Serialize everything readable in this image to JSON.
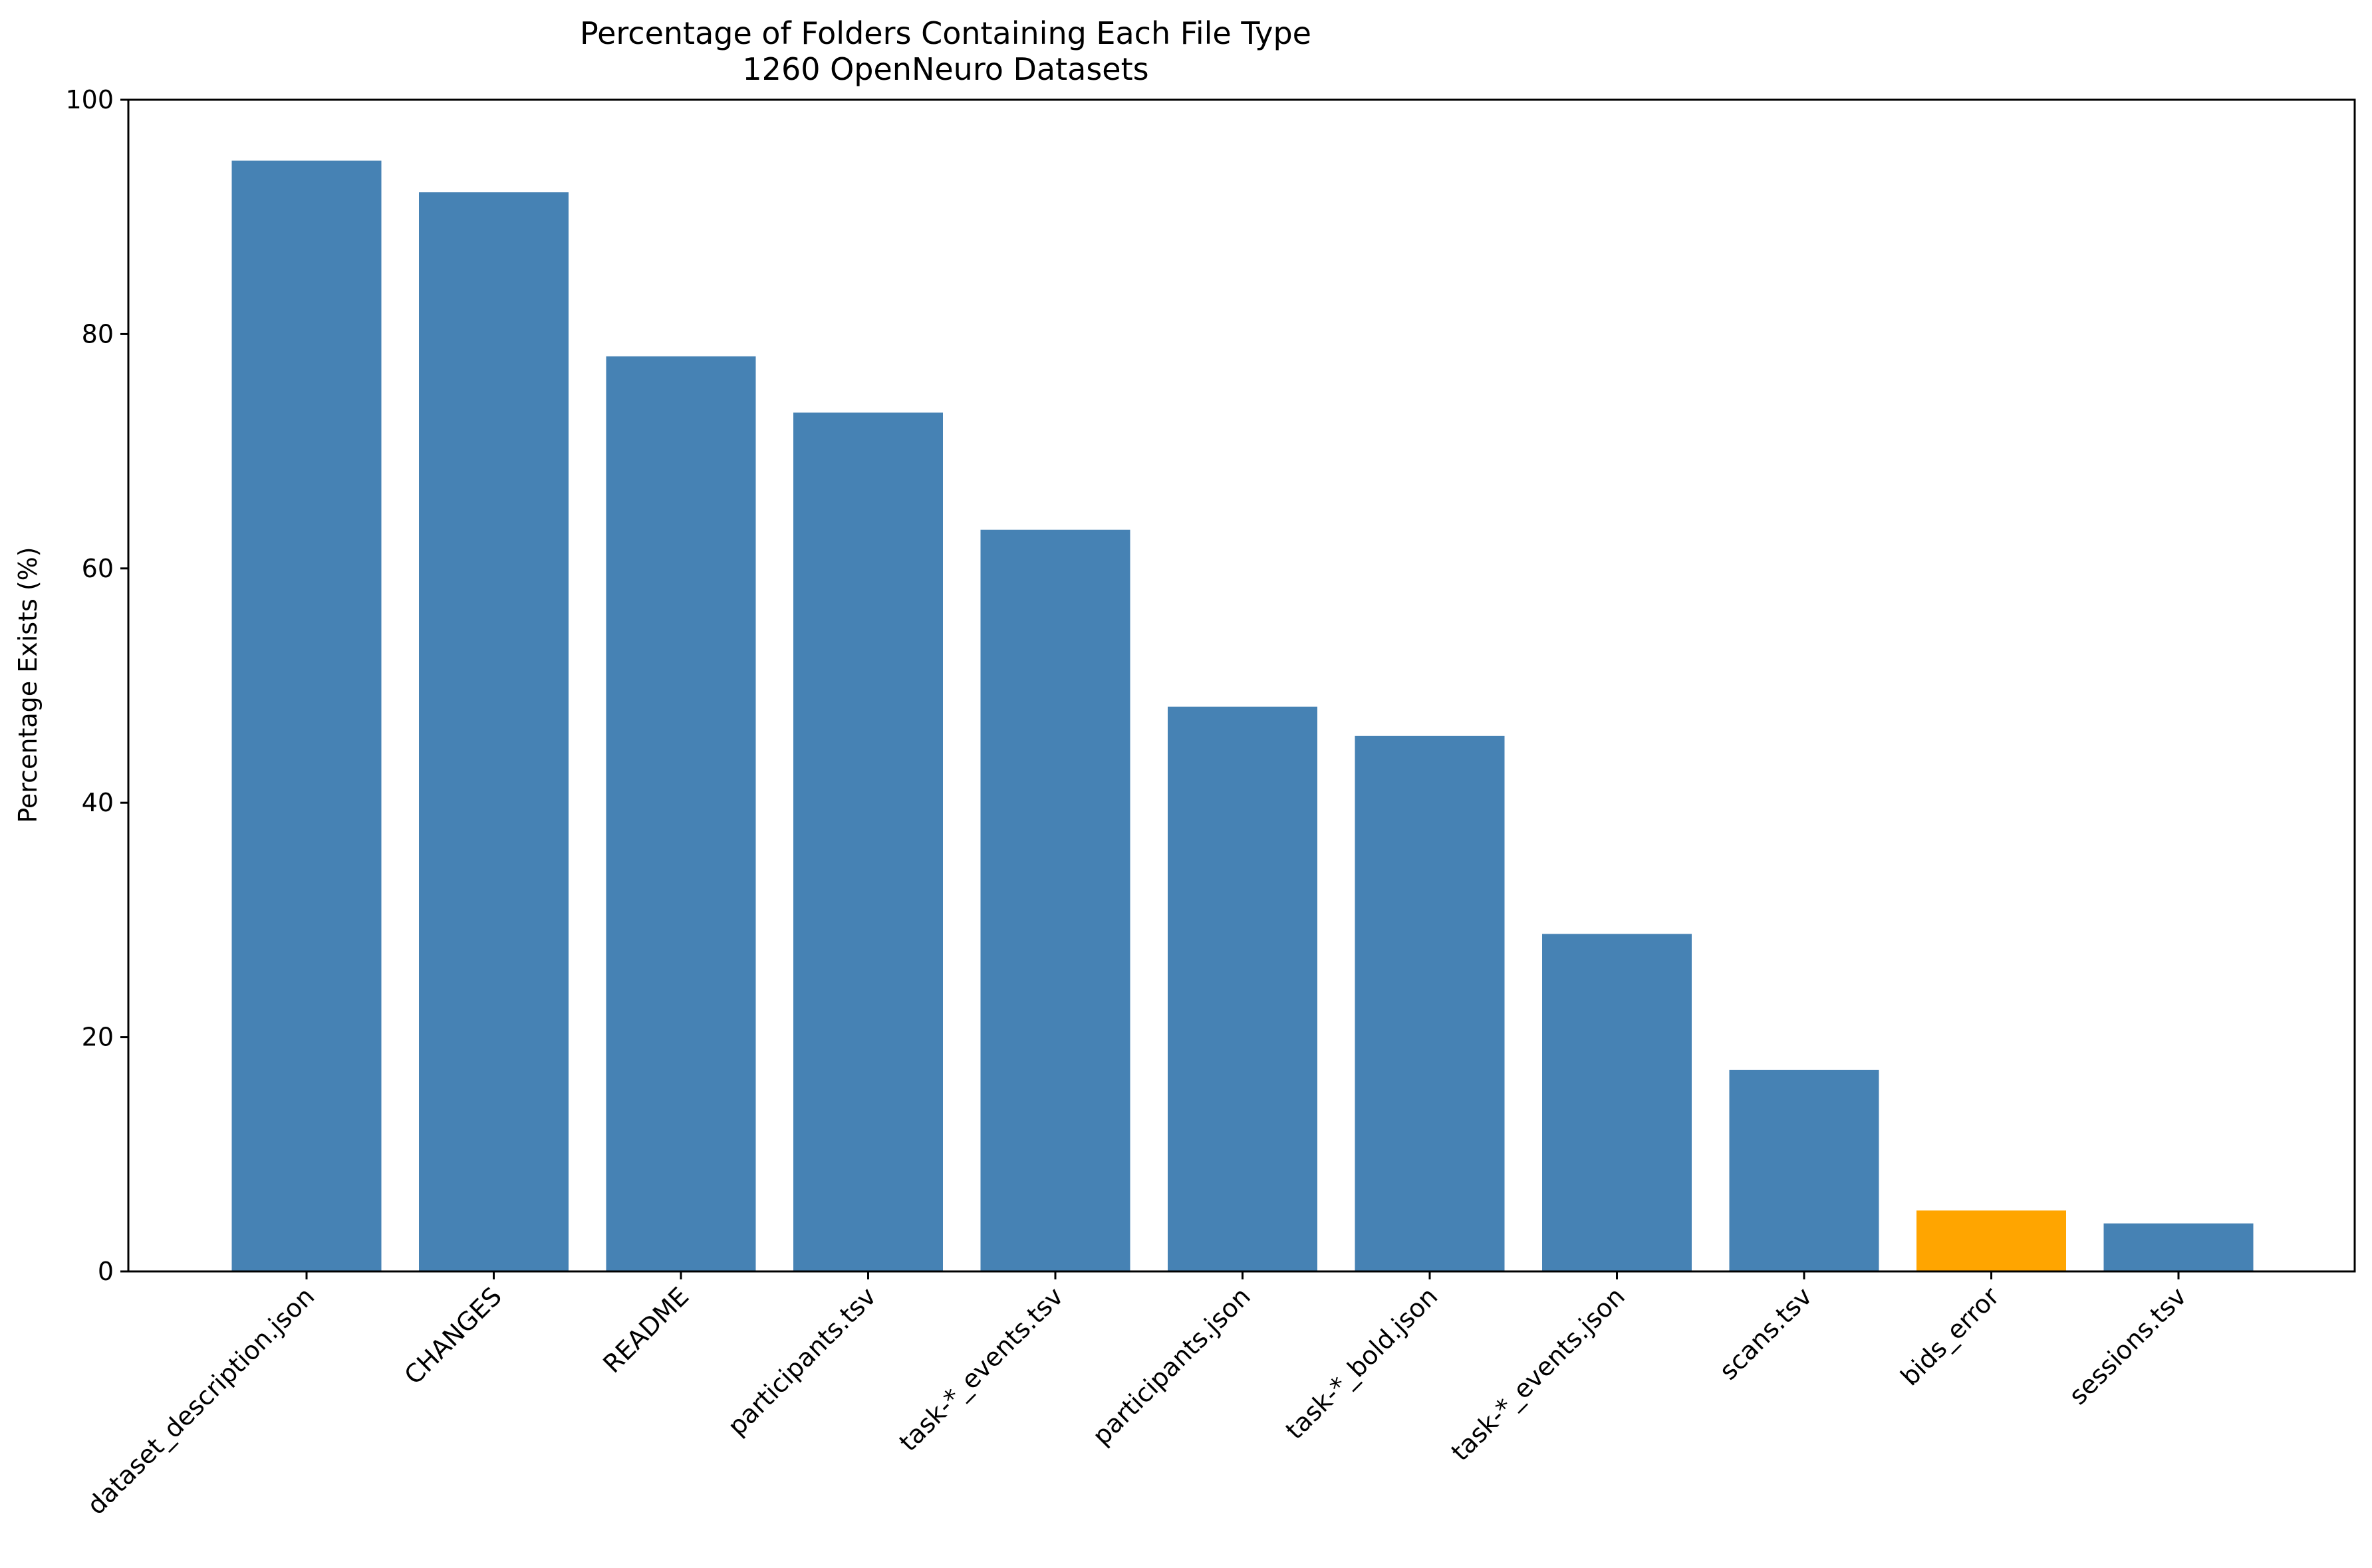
{
  "chart_data": {
    "type": "bar",
    "title": "Percentage of Folders Containing Each File Type",
    "subtitle": "1260 OpenNeuro Datasets",
    "xlabel": "",
    "ylabel": "Percentage Exists (%)",
    "ylim": [
      0,
      100
    ],
    "yticks": [
      0,
      20,
      40,
      60,
      80,
      100
    ],
    "grid": false,
    "legend": "none",
    "categories": [
      "dataset_description.json",
      "CHANGES",
      "README",
      "participants.tsv",
      "task-*_events.tsv",
      "participants.json",
      "task-*_bold.json",
      "task-*_events.json",
      "scans.tsv",
      "bids_error",
      "sessions.tsv"
    ],
    "values": [
      94.8,
      92.1,
      78.1,
      73.3,
      63.3,
      48.2,
      45.7,
      28.8,
      17.2,
      5.2,
      4.1
    ],
    "colors": [
      "#4682b4",
      "#4682b4",
      "#4682b4",
      "#4682b4",
      "#4682b4",
      "#4682b4",
      "#4682b4",
      "#4682b4",
      "#4682b4",
      "#ffa500",
      "#4682b4"
    ]
  }
}
